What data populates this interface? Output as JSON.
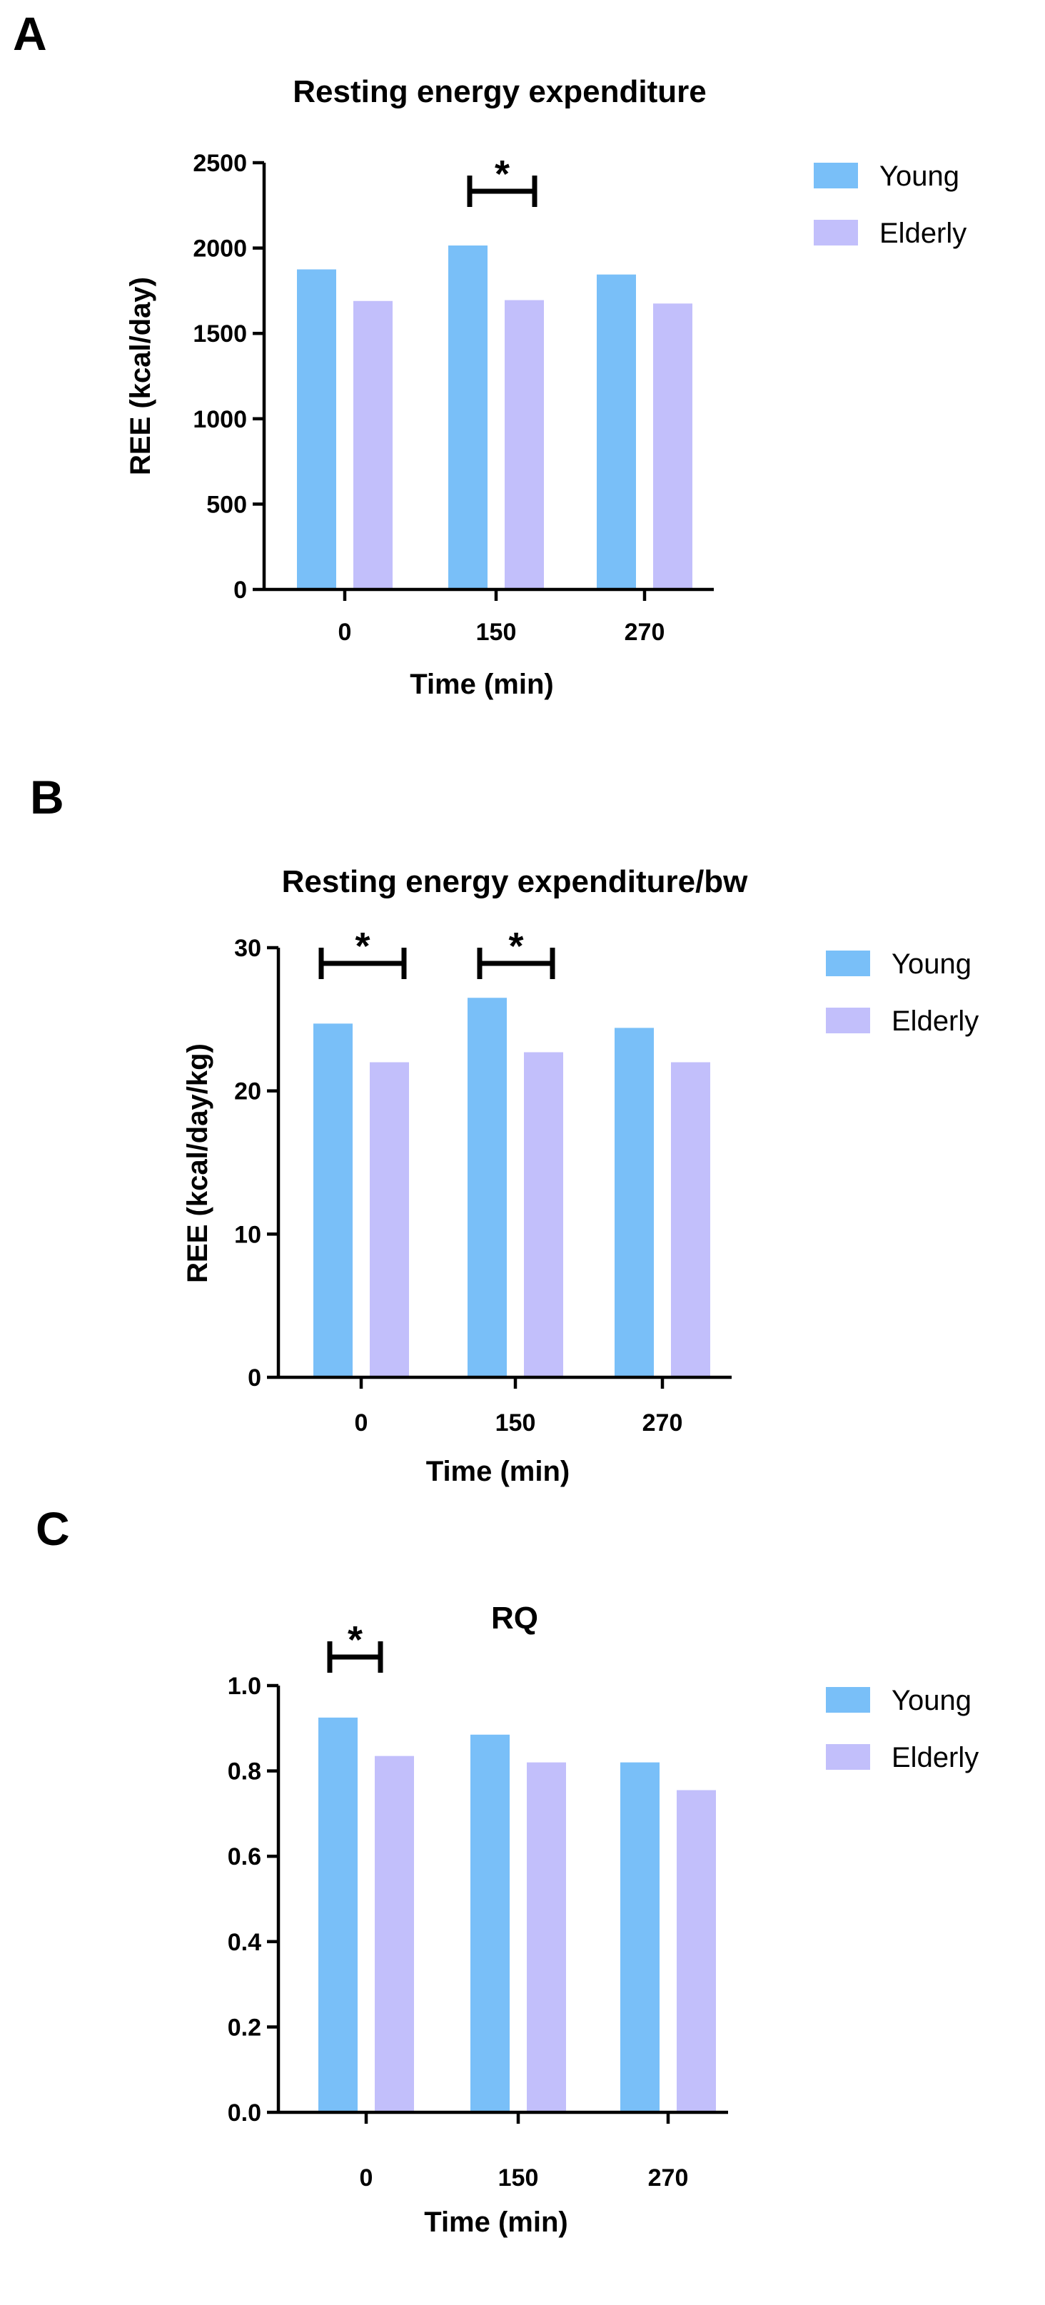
{
  "chart_data": [
    {
      "panel": "A",
      "type": "bar",
      "title": "Resting energy expenditure",
      "xlabel": "Time (min)",
      "ylabel": "REE (kcal/day)",
      "categories": [
        "0",
        "150",
        "270"
      ],
      "ylim": [
        0,
        2500
      ],
      "yticks": [
        "0",
        "500",
        "1000",
        "1500",
        "2000",
        "2500"
      ],
      "series": [
        {
          "name": "Young",
          "color": "#79bff8",
          "values": [
            1875,
            2015,
            1845
          ]
        },
        {
          "name": "Elderly",
          "color": "#c2bffb",
          "values": [
            1690,
            1695,
            1675
          ]
        }
      ],
      "legend_position": "top-right",
      "significance": [
        {
          "category": "150",
          "label": "*"
        }
      ]
    },
    {
      "panel": "B",
      "type": "bar",
      "title": "Resting energy expenditure/bw",
      "xlabel": "Time (min)",
      "ylabel": "REE (kcal/day/kg)",
      "categories": [
        "0",
        "150",
        "270"
      ],
      "ylim": [
        0,
        30
      ],
      "yticks": [
        "0",
        "10",
        "20",
        "30"
      ],
      "series": [
        {
          "name": "Young",
          "color": "#79bff8",
          "values": [
            24.7,
            26.5,
            24.4
          ]
        },
        {
          "name": "Elderly",
          "color": "#c2bffb",
          "values": [
            22.0,
            22.7,
            22.0
          ]
        }
      ],
      "legend_position": "top-right",
      "significance": [
        {
          "category": "0",
          "label": "*"
        },
        {
          "category": "150",
          "label": "*"
        }
      ]
    },
    {
      "panel": "C",
      "type": "bar",
      "title": "RQ",
      "xlabel": "Time (min)",
      "ylabel": "",
      "categories": [
        "0",
        "150",
        "270"
      ],
      "ylim": [
        0,
        1.0
      ],
      "yticks": [
        "0.0",
        "0.2",
        "0.4",
        "0.6",
        "0.8",
        "1.0"
      ],
      "series": [
        {
          "name": "Young",
          "color": "#79bff8",
          "values": [
            0.925,
            0.885,
            0.82
          ]
        },
        {
          "name": "Elderly",
          "color": "#c2bffb",
          "values": [
            0.835,
            0.82,
            0.755
          ]
        }
      ],
      "legend_position": "top-right",
      "significance": [
        {
          "category": "0",
          "label": "*"
        }
      ]
    }
  ]
}
